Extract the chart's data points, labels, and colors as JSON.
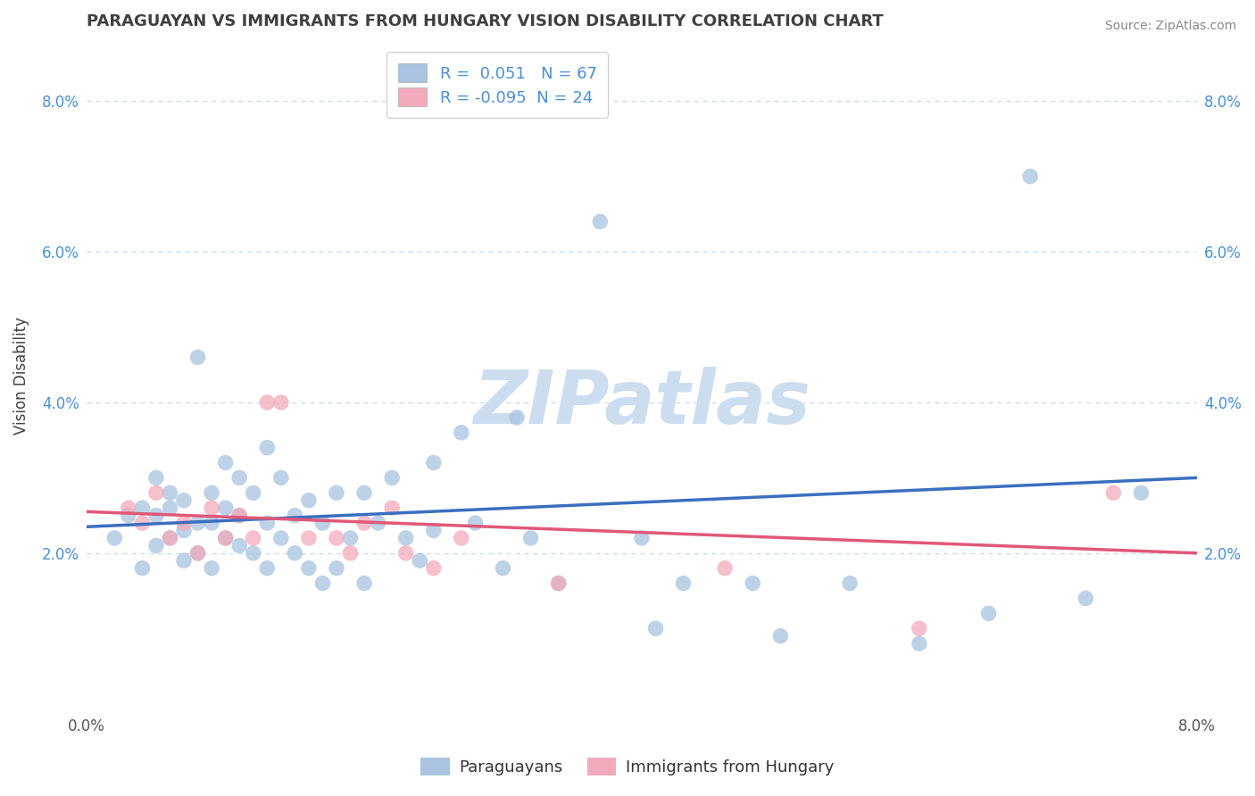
{
  "title": "PARAGUAYAN VS IMMIGRANTS FROM HUNGARY VISION DISABILITY CORRELATION CHART",
  "source": "Source: ZipAtlas.com",
  "ylabel": "Vision Disability",
  "xlim": [
    0.0,
    0.08
  ],
  "ylim": [
    -0.001,
    0.088
  ],
  "yticks": [
    0.02,
    0.04,
    0.06,
    0.08
  ],
  "ytick_labels": [
    "2.0%",
    "4.0%",
    "6.0%",
    "8.0%"
  ],
  "xticks": [
    0.0,
    0.02,
    0.04,
    0.06,
    0.08
  ],
  "xtick_labels": [
    "0.0%",
    "",
    "",
    "",
    "8.0%"
  ],
  "blue_R": 0.051,
  "blue_N": 67,
  "pink_R": -0.095,
  "pink_N": 24,
  "blue_color": "#a8c4e0",
  "pink_color": "#f2aabb",
  "blue_line_color": "#3a6fbf",
  "pink_line_color": "#e05878",
  "grid_color": "#c8d8e8",
  "watermark": "ZIPatlas",
  "watermark_color": "#ccddf0",
  "blue_scatter_x": [
    0.002,
    0.003,
    0.004,
    0.004,
    0.005,
    0.005,
    0.005,
    0.006,
    0.006,
    0.006,
    0.007,
    0.007,
    0.007,
    0.008,
    0.008,
    0.008,
    0.009,
    0.009,
    0.009,
    0.01,
    0.01,
    0.01,
    0.011,
    0.011,
    0.011,
    0.012,
    0.012,
    0.013,
    0.013,
    0.013,
    0.014,
    0.014,
    0.015,
    0.015,
    0.016,
    0.016,
    0.017,
    0.017,
    0.018,
    0.018,
    0.019,
    0.02,
    0.02,
    0.021,
    0.022,
    0.023,
    0.024,
    0.025,
    0.025,
    0.027,
    0.028,
    0.03,
    0.031,
    0.032,
    0.034,
    0.037,
    0.04,
    0.041,
    0.043,
    0.048,
    0.05,
    0.055,
    0.06,
    0.065,
    0.068,
    0.072,
    0.076
  ],
  "blue_scatter_y": [
    0.022,
    0.025,
    0.018,
    0.026,
    0.03,
    0.025,
    0.021,
    0.026,
    0.022,
    0.028,
    0.019,
    0.023,
    0.027,
    0.02,
    0.024,
    0.046,
    0.018,
    0.024,
    0.028,
    0.022,
    0.026,
    0.032,
    0.021,
    0.025,
    0.03,
    0.02,
    0.028,
    0.018,
    0.024,
    0.034,
    0.022,
    0.03,
    0.02,
    0.025,
    0.018,
    0.027,
    0.016,
    0.024,
    0.018,
    0.028,
    0.022,
    0.016,
    0.028,
    0.024,
    0.03,
    0.022,
    0.019,
    0.023,
    0.032,
    0.036,
    0.024,
    0.018,
    0.038,
    0.022,
    0.016,
    0.064,
    0.022,
    0.01,
    0.016,
    0.016,
    0.009,
    0.016,
    0.008,
    0.012,
    0.07,
    0.014,
    0.028
  ],
  "pink_scatter_x": [
    0.003,
    0.004,
    0.005,
    0.006,
    0.007,
    0.008,
    0.009,
    0.01,
    0.011,
    0.012,
    0.013,
    0.014,
    0.016,
    0.018,
    0.019,
    0.02,
    0.022,
    0.023,
    0.025,
    0.027,
    0.034,
    0.046,
    0.06,
    0.074
  ],
  "pink_scatter_y": [
    0.026,
    0.024,
    0.028,
    0.022,
    0.024,
    0.02,
    0.026,
    0.022,
    0.025,
    0.022,
    0.04,
    0.04,
    0.022,
    0.022,
    0.02,
    0.024,
    0.026,
    0.02,
    0.018,
    0.022,
    0.016,
    0.018,
    0.01,
    0.028
  ],
  "blue_line_x": [
    0.0,
    0.08
  ],
  "blue_line_y": [
    0.0235,
    0.03
  ],
  "pink_line_x": [
    0.0,
    0.08
  ],
  "pink_line_y": [
    0.0255,
    0.02
  ]
}
